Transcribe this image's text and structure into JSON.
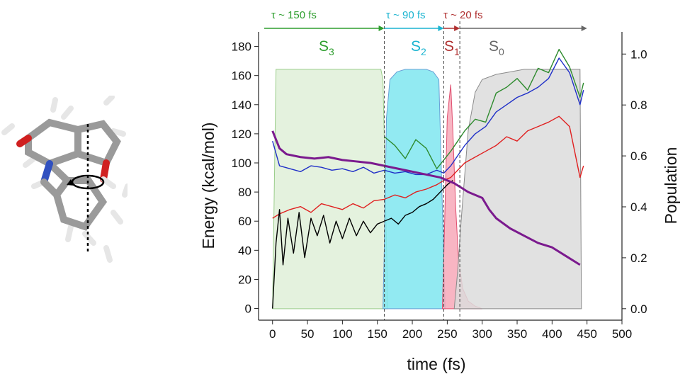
{
  "chart_data": {
    "type": "line",
    "xlabel": "time (fs)",
    "ylabel": "Energy (kcal/mol)",
    "y2label": "Population",
    "xlim": [
      -20,
      500
    ],
    "ylim": [
      -8,
      190
    ],
    "y2lim": [
      -0.045,
      1.087
    ],
    "xticks": [
      0,
      50,
      100,
      150,
      200,
      250,
      300,
      350,
      400,
      450,
      500
    ],
    "yticks": [
      0,
      20,
      40,
      60,
      80,
      100,
      120,
      140,
      160,
      180
    ],
    "y2ticks": [
      "0.0",
      "0.2",
      "0.4",
      "0.6",
      "0.8",
      "1.0"
    ],
    "y2tick_values": [
      0.0,
      0.2,
      0.4,
      0.6,
      0.8,
      1.0
    ],
    "populations": [
      {
        "state": "S3",
        "color": "#dff0d8",
        "edge": "#9acd8a",
        "x": [
          0,
          5,
          155,
          158,
          162,
          165
        ],
        "values": [
          0,
          0.94,
          0.94,
          0.9,
          0.4,
          0
        ]
      },
      {
        "state": "S2",
        "color": "#7fe6f0",
        "edge": "#6aa0d6",
        "x": [
          158,
          160,
          163,
          168,
          178,
          190,
          200,
          210,
          220,
          230,
          238,
          242,
          247
        ],
        "values": [
          0,
          0.25,
          0.75,
          0.9,
          0.93,
          0.94,
          0.94,
          0.94,
          0.94,
          0.93,
          0.9,
          0.5,
          0
        ]
      },
      {
        "state": "S1",
        "color": "#f7a8b8",
        "edge": "#e05070",
        "x": [
          243,
          245,
          250,
          255,
          258,
          262,
          266,
          272,
          280,
          290,
          300
        ],
        "values": [
          0,
          0.2,
          0.75,
          0.88,
          0.7,
          0.4,
          0.2,
          0.08,
          0.03,
          0.01,
          0
        ]
      },
      {
        "state": "S0",
        "color": "#dcdcdc",
        "edge": "#8a8a8a",
        "x": [
          260,
          265,
          270,
          280,
          290,
          300,
          320,
          340,
          360,
          380,
          400,
          420,
          440,
          442
        ],
        "values": [
          0,
          0.15,
          0.35,
          0.7,
          0.85,
          0.9,
          0.92,
          0.93,
          0.94,
          0.94,
          0.94,
          0.94,
          0.94,
          0
        ]
      }
    ],
    "series": [
      {
        "color": "#2e8b2e",
        "x": [
          160,
          175,
          190,
          205,
          220,
          235,
          245,
          255,
          265,
          275,
          290,
          305,
          320,
          335,
          350,
          365,
          380,
          395,
          410,
          425,
          440,
          445
        ],
        "values": [
          118,
          112,
          103,
          116,
          110,
          96,
          102,
          108,
          115,
          122,
          130,
          128,
          148,
          152,
          158,
          150,
          165,
          162,
          178,
          166,
          145,
          155
        ]
      },
      {
        "color": "#2030c8",
        "x": [
          0,
          10,
          25,
          40,
          55,
          70,
          85,
          100,
          115,
          130,
          145,
          160,
          175,
          190,
          205,
          220,
          235,
          245,
          255,
          265,
          275,
          290,
          305,
          320,
          335,
          350,
          365,
          380,
          395,
          410,
          425,
          440,
          445
        ],
        "values": [
          115,
          98,
          96,
          94,
          98,
          97,
          95,
          96,
          94,
          97,
          93,
          95,
          93,
          94,
          92,
          92,
          95,
          93,
          98,
          105,
          112,
          120,
          125,
          135,
          140,
          145,
          148,
          152,
          158,
          172,
          162,
          140,
          150
        ]
      },
      {
        "color": "#e02020",
        "x": [
          0,
          10,
          25,
          40,
          55,
          70,
          85,
          100,
          115,
          130,
          145,
          160,
          175,
          190,
          205,
          220,
          235,
          245,
          255,
          265,
          275,
          290,
          305,
          320,
          335,
          350,
          365,
          380,
          395,
          410,
          425,
          440,
          445
        ],
        "values": [
          62,
          65,
          68,
          70,
          66,
          72,
          70,
          68,
          72,
          69,
          74,
          75,
          78,
          76,
          80,
          82,
          85,
          88,
          90,
          95,
          100,
          104,
          108,
          112,
          118,
          115,
          122,
          125,
          128,
          132,
          125,
          90,
          98
        ]
      },
      {
        "color": "#000000",
        "x": [
          0,
          5,
          10,
          15,
          22,
          30,
          38,
          46,
          55,
          64,
          73,
          82,
          91,
          100,
          110,
          120,
          130,
          140,
          150,
          160,
          170,
          180,
          190,
          200,
          210,
          220,
          230,
          240,
          250,
          258
        ],
        "values": [
          0,
          45,
          68,
          30,
          62,
          38,
          66,
          35,
          62,
          50,
          64,
          45,
          60,
          48,
          62,
          50,
          60,
          52,
          58,
          60,
          62,
          58,
          64,
          66,
          70,
          72,
          75,
          80,
          85,
          88
        ]
      },
      {
        "color": "#7b1a8e",
        "x": [
          0,
          10,
          20,
          40,
          60,
          80,
          100,
          120,
          140,
          160,
          180,
          200,
          220,
          240,
          260,
          280,
          300,
          310,
          320,
          340,
          360,
          380,
          400,
          420,
          440
        ],
        "values": [
          122,
          110,
          106,
          104,
          103,
          104,
          102,
          101,
          100,
          98,
          96,
          94,
          92,
          90,
          86,
          80,
          76,
          68,
          62,
          55,
          50,
          45,
          42,
          36,
          30
        ]
      }
    ],
    "transitions": [
      160,
      245,
      268
    ],
    "annotations": [
      {
        "tau": "τ ~ 150 fs",
        "color": "#2e9e2e"
      },
      {
        "tau": "τ ~ 90 fs",
        "color": "#1bb4d0"
      },
      {
        "tau": "τ ~ 20 fs",
        "color": "#b03030"
      }
    ],
    "state_labels": [
      {
        "label": "S",
        "sub": "3",
        "color": "#2e9e2e"
      },
      {
        "label": "S",
        "sub": "2",
        "color": "#1bb4d0"
      },
      {
        "label": "S",
        "sub": "1",
        "color": "#b03030"
      },
      {
        "label": "S",
        "sub": "0",
        "color": "#666666"
      }
    ]
  }
}
